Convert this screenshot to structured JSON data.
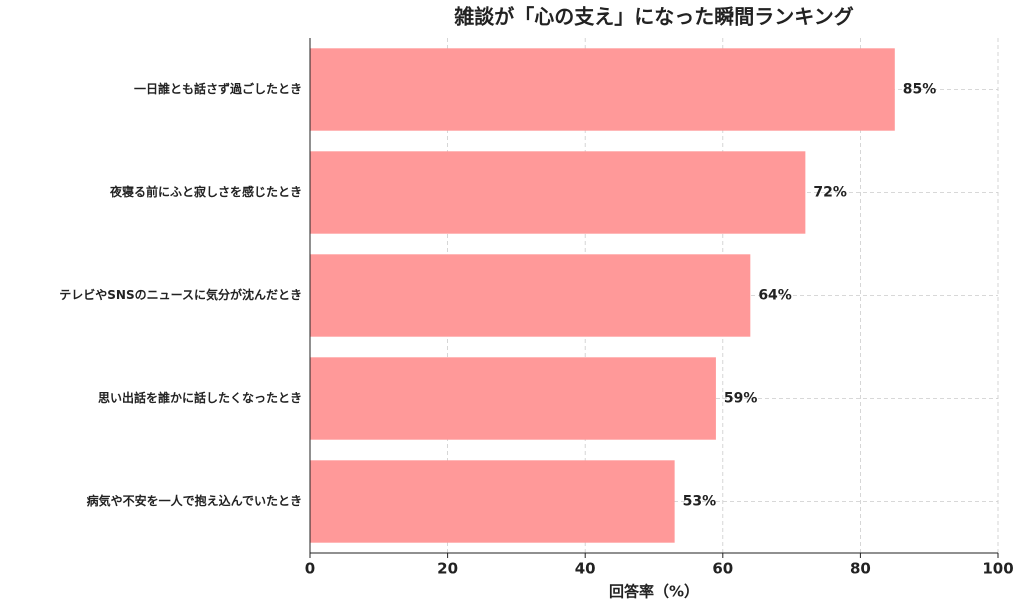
{
  "chart_data": {
    "type": "bar",
    "orientation": "horizontal",
    "title": "雑談が「心の支え」になった瞬間ランキング",
    "xlabel": "回答率（%）",
    "categories": [
      "一日誰とも話さず過ごしたとき",
      "夜寝る前にふと寂しさを感じたとき",
      "テレビやSNSのニュースに気分が沈んだとき",
      "思い出話を誰かに話したくなったとき",
      "病気や不安を一人で抱え込んでいたとき"
    ],
    "values": [
      85,
      72,
      64,
      59,
      53
    ],
    "value_labels": [
      "85%",
      "72%",
      "64%",
      "59%",
      "53%"
    ],
    "color": "#ff9999",
    "xlim": [
      0,
      100
    ],
    "xticks": [
      0,
      20,
      40,
      60,
      80,
      100
    ],
    "grid": true
  }
}
